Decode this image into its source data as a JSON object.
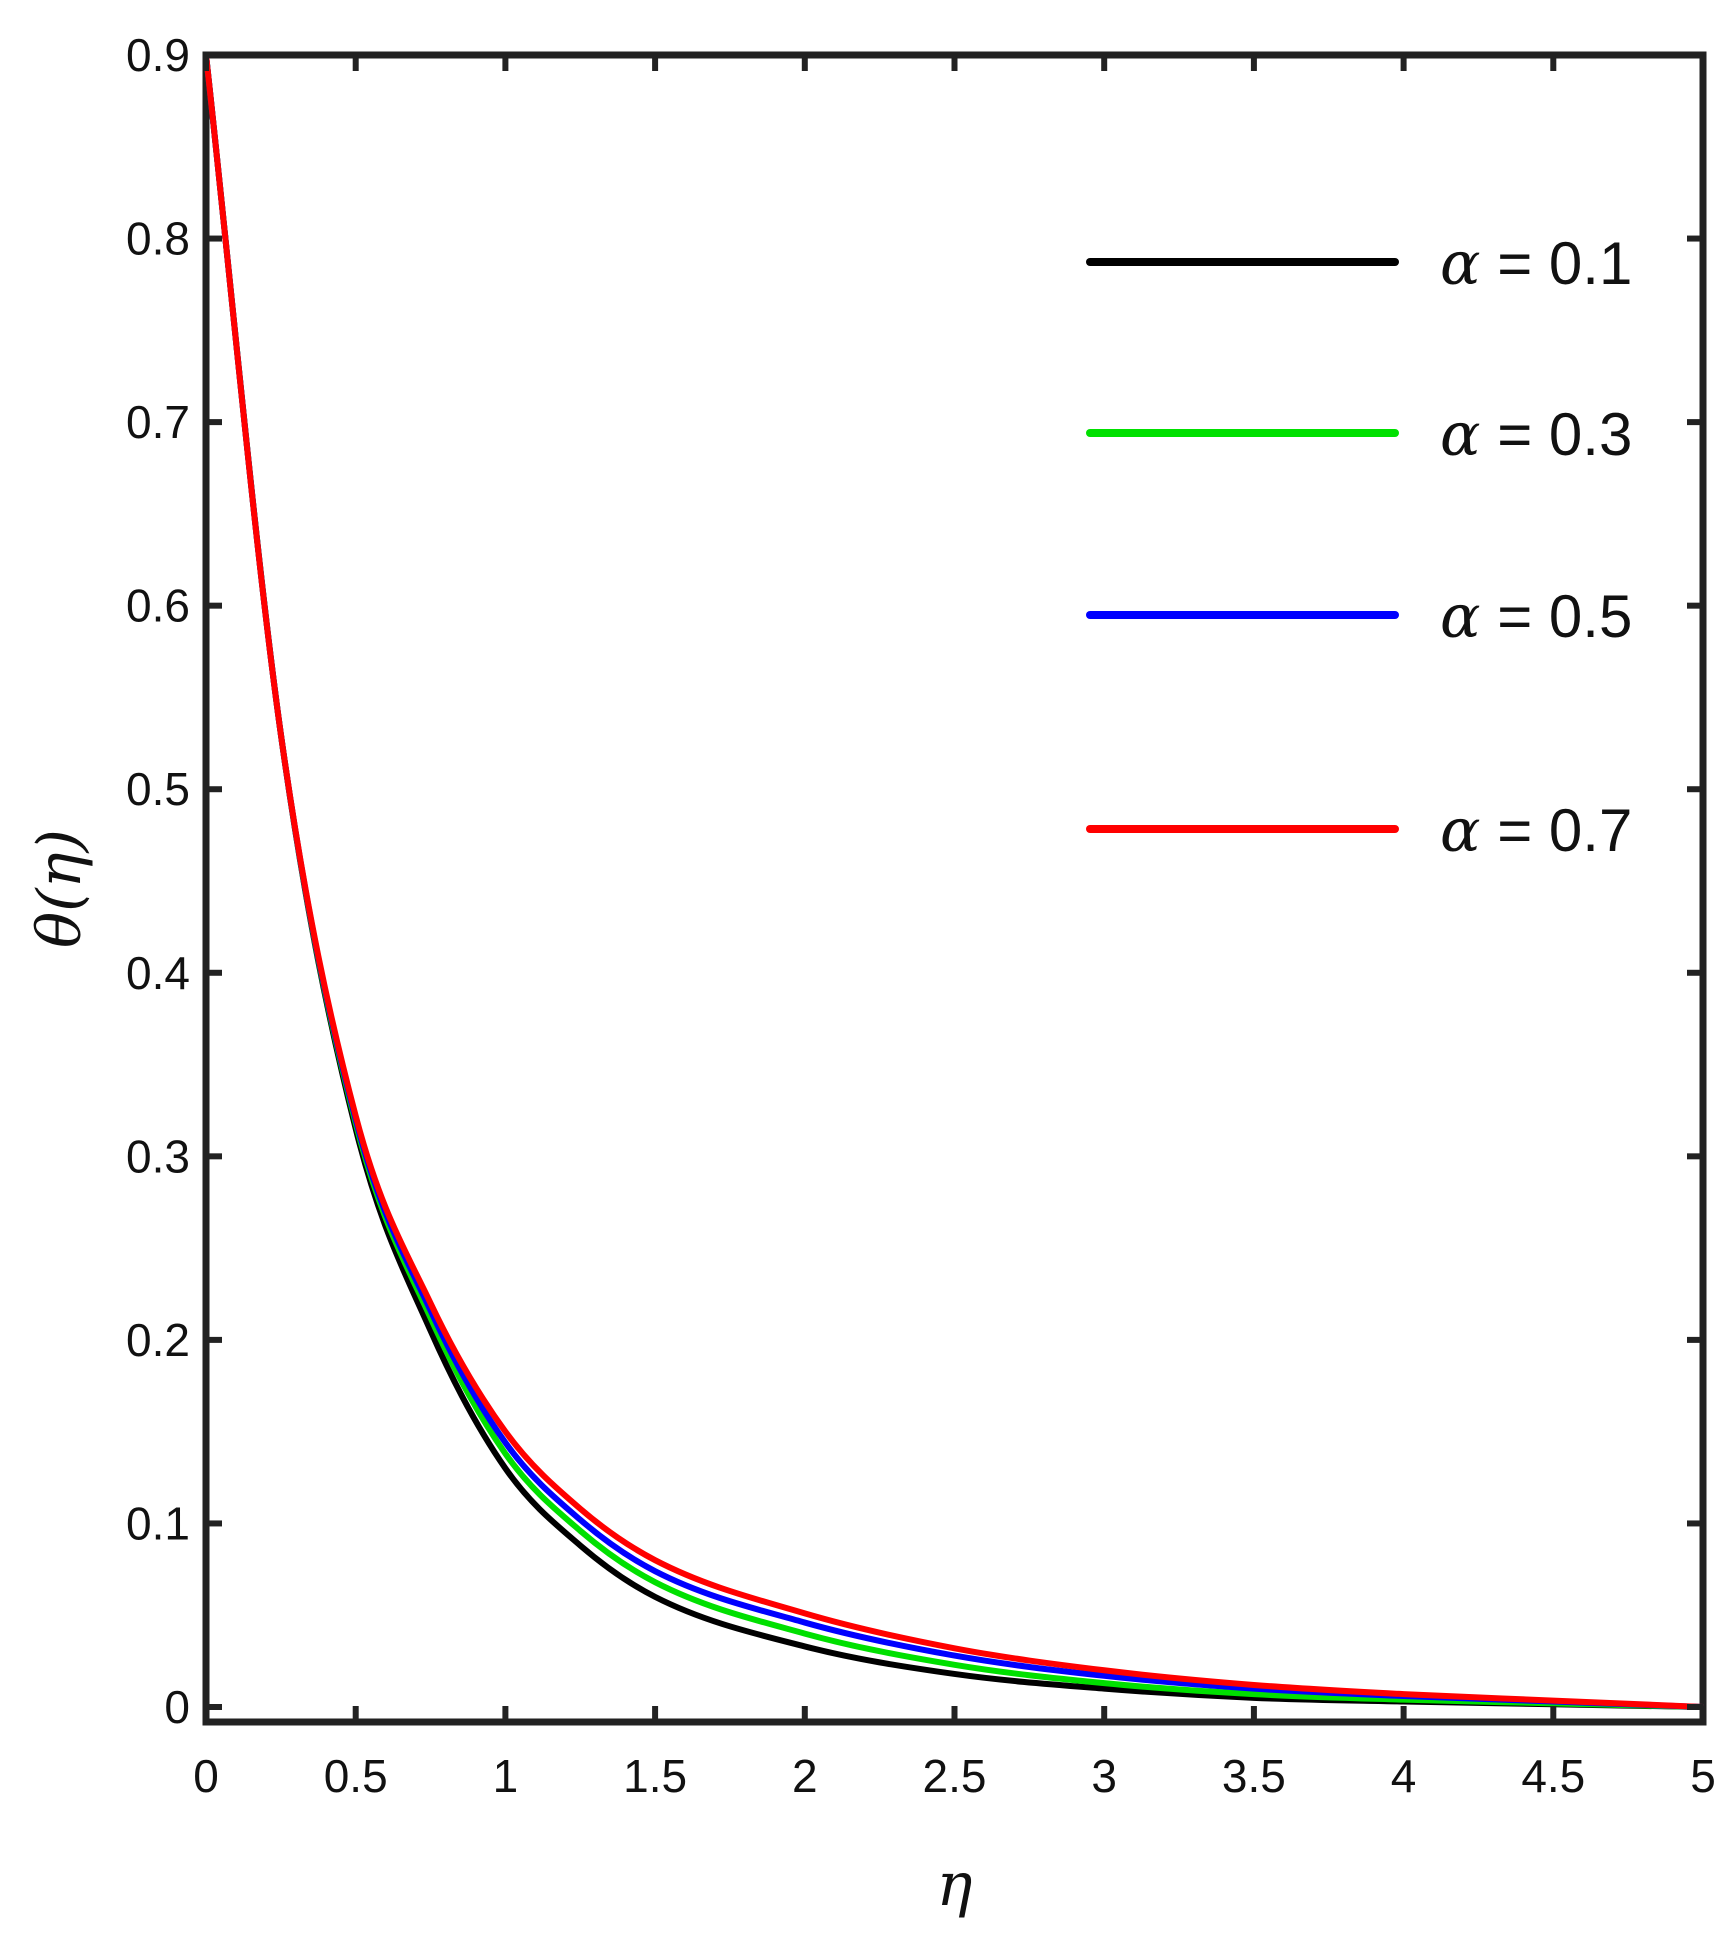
{
  "chart_data": {
    "type": "line",
    "xlabel": "η",
    "ylabel": "θ(η)",
    "xlim": [
      0,
      5
    ],
    "ylim": [
      0,
      0.9
    ],
    "xticks": [
      "0",
      "0.5",
      "1",
      "1.5",
      "2",
      "2.5",
      "3",
      "3.5",
      "4",
      "4.5",
      "5"
    ],
    "yticks": [
      "0",
      "0.1",
      "0.2",
      "0.3",
      "0.4",
      "0.5",
      "0.6",
      "0.7",
      "0.8",
      "0.9"
    ],
    "legend_position": "top-right",
    "grid": false,
    "x": [
      0,
      0.25,
      0.5,
      0.75,
      1,
      1.25,
      1.5,
      2,
      2.5,
      3,
      3.5,
      4,
      4.5,
      5
    ],
    "series": [
      {
        "name": "α = 0.1",
        "symbol": "α",
        "value_text": " = 0.1",
        "color": "#000000",
        "values": [
          0.9,
          0.53,
          0.315,
          0.205,
          0.13,
          0.088,
          0.06,
          0.033,
          0.018,
          0.01,
          0.005,
          0.003,
          0.0015,
          0.0
        ]
      },
      {
        "name": "α = 0.3",
        "symbol": "α",
        "value_text": " = 0.3",
        "color": "#00e000",
        "values": [
          0.9,
          0.53,
          0.318,
          0.212,
          0.138,
          0.096,
          0.068,
          0.04,
          0.023,
          0.013,
          0.007,
          0.004,
          0.002,
          0.0
        ]
      },
      {
        "name": "α = 0.5",
        "symbol": "α",
        "value_text": " = 0.5",
        "color": "#0000ff",
        "values": [
          0.9,
          0.53,
          0.32,
          0.216,
          0.144,
          0.102,
          0.074,
          0.046,
          0.028,
          0.017,
          0.01,
          0.006,
          0.003,
          0.0
        ]
      },
      {
        "name": "α = 0.7",
        "symbol": "α",
        "value_text": " = 0.7",
        "color": "#ff0000",
        "values": [
          0.9,
          0.53,
          0.322,
          0.22,
          0.15,
          0.108,
          0.08,
          0.051,
          0.032,
          0.02,
          0.012,
          0.007,
          0.0035,
          0.0
        ]
      }
    ]
  }
}
